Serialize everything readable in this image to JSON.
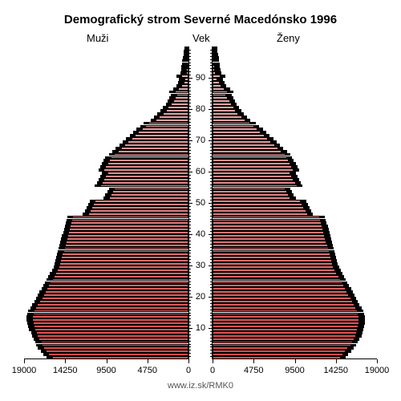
{
  "chart": {
    "type": "population-pyramid",
    "title": "Demografický strom Severné Macedónsko 1996",
    "label_left": "Muži",
    "label_center": "Vek",
    "label_right": "Ženy",
    "credit": "www.iz.sk/RMK0",
    "title_fontsize": 15,
    "label_fontsize": 13,
    "tick_fontsize": 11,
    "background_color": "#ffffff",
    "bar_border_color": "#000000",
    "shadow_color": "#000000",
    "gradient_top": "#e0b8b8",
    "gradient_bottom": "#d84848",
    "x_axis": {
      "max": 19000,
      "ticks": [
        19000,
        14250,
        9500,
        4750,
        0
      ],
      "tick_labels_left": [
        "19000",
        "14250",
        "9500",
        "4750",
        "0"
      ],
      "tick_labels_right": [
        "0",
        "4750",
        "9500",
        "14250",
        "19000"
      ]
    },
    "y_axis": {
      "max_age": 100,
      "major_ticks": [
        10,
        20,
        30,
        40,
        50,
        60,
        70,
        80,
        90
      ],
      "minor_tick_step": 1
    },
    "ages": [
      0,
      1,
      2,
      3,
      4,
      5,
      6,
      7,
      8,
      9,
      10,
      11,
      12,
      13,
      14,
      15,
      16,
      17,
      18,
      19,
      20,
      21,
      22,
      23,
      24,
      25,
      26,
      27,
      28,
      29,
      30,
      31,
      32,
      33,
      34,
      35,
      36,
      37,
      38,
      39,
      40,
      41,
      42,
      43,
      44,
      45,
      46,
      47,
      48,
      49,
      50,
      51,
      52,
      53,
      54,
      55,
      56,
      57,
      58,
      59,
      60,
      61,
      62,
      63,
      64,
      65,
      66,
      67,
      68,
      69,
      70,
      71,
      72,
      73,
      74,
      75,
      76,
      77,
      78,
      79,
      80,
      81,
      82,
      83,
      84,
      85,
      86,
      87,
      88,
      89,
      90,
      91,
      92,
      93,
      94,
      95,
      96,
      97,
      98,
      99
    ],
    "males": [
      15800,
      16200,
      16500,
      16800,
      17000,
      17100,
      17300,
      17500,
      17600,
      17800,
      17900,
      18000,
      18100,
      18100,
      18000,
      17900,
      17700,
      17500,
      17200,
      17000,
      16800,
      16600,
      16400,
      16200,
      16000,
      15800,
      15600,
      15400,
      15200,
      15000,
      14900,
      14800,
      14700,
      14600,
      14500,
      14400,
      14300,
      14200,
      14100,
      14000,
      13900,
      13800,
      13700,
      13600,
      13500,
      13400,
      11600,
      11400,
      11200,
      11000,
      10800,
      9200,
      9000,
      8800,
      8600,
      10200,
      10000,
      9800,
      9600,
      9400,
      9800,
      9600,
      9400,
      9200,
      9000,
      8600,
      8200,
      7800,
      7400,
      7000,
      6600,
      6200,
      5800,
      5400,
      5000,
      4600,
      3800,
      3400,
      3000,
      2600,
      2400,
      2000,
      1800,
      1600,
      1400,
      1600,
      1200,
      800,
      600,
      500,
      800,
      300,
      250,
      200,
      150,
      120,
      100,
      80,
      60,
      40
    ],
    "females": [
      14800,
      15100,
      15400,
      15700,
      16000,
      16200,
      16400,
      16600,
      16700,
      16800,
      16900,
      17000,
      17000,
      17000,
      16900,
      16800,
      16600,
      16400,
      16200,
      16000,
      15800,
      15600,
      15400,
      15200,
      15000,
      14800,
      14600,
      14400,
      14200,
      14000,
      13900,
      13800,
      13700,
      13600,
      13500,
      13400,
      13300,
      13200,
      13100,
      13000,
      12900,
      12800,
      12700,
      12600,
      12500,
      12400,
      11000,
      10800,
      10600,
      10400,
      10200,
      9000,
      8800,
      8600,
      8400,
      9800,
      9600,
      9400,
      9200,
      9000,
      9400,
      9200,
      9000,
      8800,
      8600,
      8400,
      8000,
      7600,
      7200,
      6800,
      6400,
      6000,
      5600,
      5200,
      4800,
      4400,
      3800,
      3400,
      3000,
      2700,
      2500,
      2200,
      2000,
      1800,
      1600,
      1800,
      1400,
      1000,
      800,
      600,
      900,
      400,
      300,
      250,
      200,
      160,
      130,
      100,
      80,
      60
    ],
    "male_shadows": [
      16400,
      16800,
      17100,
      17400,
      17600,
      17700,
      17900,
      18100,
      18200,
      18400,
      18500,
      18600,
      18700,
      18700,
      18600,
      18500,
      18300,
      18100,
      17800,
      17600,
      17400,
      17200,
      17000,
      16800,
      16600,
      16400,
      16200,
      16000,
      15800,
      15600,
      15500,
      15400,
      15300,
      15200,
      15100,
      15000,
      14900,
      14800,
      14700,
      14600,
      14500,
      14400,
      14300,
      14200,
      14100,
      14000,
      12200,
      12000,
      11800,
      11600,
      11400,
      9800,
      9600,
      9400,
      9200,
      10800,
      10600,
      10400,
      10200,
      10000,
      10400,
      10200,
      10000,
      9800,
      9600,
      9200,
      8800,
      8400,
      8000,
      7600,
      7200,
      6800,
      6400,
      6000,
      5600,
      5200,
      4400,
      4000,
      3600,
      3200,
      3000,
      2600,
      2400,
      2200,
      2000,
      2200,
      1800,
      1400,
      1200,
      1100,
      1400,
      900,
      850,
      800,
      750,
      700,
      650,
      600,
      550,
      500
    ],
    "female_shadows": [
      15400,
      15700,
      16000,
      16300,
      16600,
      16800,
      17000,
      17200,
      17300,
      17400,
      17500,
      17600,
      17600,
      17600,
      17500,
      17400,
      17200,
      17000,
      16800,
      16600,
      16400,
      16200,
      16000,
      15800,
      15600,
      15400,
      15200,
      15000,
      14800,
      14600,
      14500,
      14400,
      14300,
      14200,
      14100,
      14000,
      13900,
      13800,
      13700,
      13600,
      13500,
      13400,
      13300,
      13200,
      13100,
      13000,
      11600,
      11400,
      11200,
      11000,
      10800,
      9600,
      9400,
      9200,
      9000,
      10400,
      10200,
      10000,
      9800,
      9600,
      10000,
      9800,
      9600,
      9400,
      9200,
      9000,
      8600,
      8200,
      7800,
      7400,
      7000,
      6600,
      6200,
      5800,
      5400,
      5000,
      4400,
      4000,
      3600,
      3300,
      3100,
      2800,
      2600,
      2400,
      2200,
      2400,
      2000,
      1600,
      1400,
      1200,
      1500,
      1000,
      900,
      850,
      800,
      750,
      700,
      650,
      600,
      550
    ]
  }
}
